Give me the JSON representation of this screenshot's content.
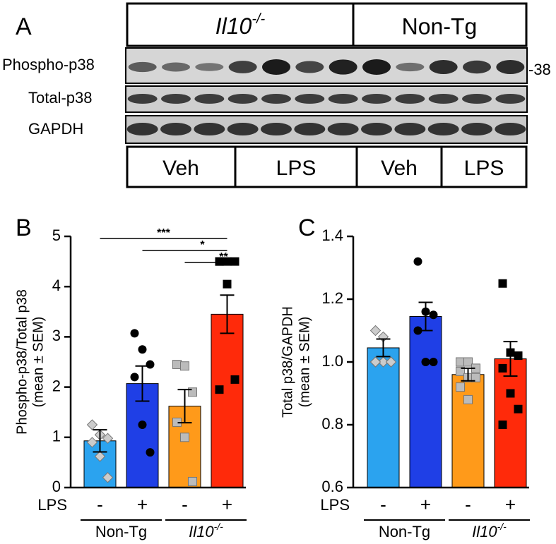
{
  "panel_a": {
    "label": "A",
    "groups": [
      {
        "text": "Il10",
        "sup": "-/-"
      },
      {
        "text": "Non-Tg"
      }
    ],
    "rows": [
      "Phospho-p38",
      "Total-p38",
      "GAPDH"
    ],
    "marker": "-38",
    "treatments": [
      "Veh",
      "LPS",
      "Veh",
      "LPS"
    ]
  },
  "chart_data": [
    {
      "type": "bar",
      "label": "B",
      "ylabel": [
        "Phospho-p38/Total p38",
        "(mean ± SEM)"
      ],
      "factor_label": "LPS",
      "categories": [
        "-",
        "+",
        "-",
        "+"
      ],
      "groups": [
        {
          "text": "Non-Tg"
        },
        {
          "text": "Il10",
          "sup": "-/-"
        }
      ],
      "values": [
        0.93,
        2.07,
        1.62,
        3.45
      ],
      "errors": [
        0.22,
        0.35,
        0.33,
        0.38
      ],
      "colors": [
        "#2ba3ef",
        "#1f3fe6",
        "#ff9a1a",
        "#ff2a0a"
      ],
      "points": [
        [
          1.25,
          1.05,
          0.98,
          0.9,
          0.62,
          0.2
        ],
        [
          3.07,
          2.75,
          2.45,
          2.2,
          1.25,
          0.7
        ],
        [
          2.45,
          2.42,
          1.9,
          1.3,
          1.0,
          0.12
        ],
        [
          4.5,
          4.5,
          4.5,
          4.5,
          4.05,
          2.15,
          1.95
        ]
      ],
      "markers": [
        "diamond",
        "circle",
        "square",
        "square"
      ],
      "marker_colors": [
        "#cccccc",
        "#000000",
        "#bbbbbb",
        "#000000"
      ],
      "ylim": [
        0,
        5
      ],
      "yticks": [
        0,
        1,
        2,
        3,
        4,
        5
      ],
      "annotations": [
        "***",
        "*",
        "**"
      ]
    },
    {
      "type": "bar",
      "label": "C",
      "ylabel": [
        "Total p38/GAPDH",
        "(mean ± SEM)"
      ],
      "factor_label": "LPS",
      "categories": [
        "-",
        "+",
        "-",
        "+"
      ],
      "groups": [
        {
          "text": "Non-Tg"
        },
        {
          "text": "Il10",
          "sup": "-/-"
        }
      ],
      "values": [
        1.045,
        1.145,
        0.96,
        1.01
      ],
      "errors": [
        0.028,
        0.045,
        0.02,
        0.055
      ],
      "colors": [
        "#2ba3ef",
        "#1f3fe6",
        "#ff9a1a",
        "#ff2a0a"
      ],
      "points": [
        [
          1.1,
          1.08,
          1.0,
          1.0,
          1.0,
          1.0,
          1.0
        ],
        [
          1.32,
          1.16,
          1.15,
          1.1,
          1.0,
          1.0
        ],
        [
          1.0,
          1.0,
          0.98,
          0.97,
          0.95,
          0.95,
          0.92,
          0.88
        ],
        [
          1.25,
          1.03,
          1.02,
          0.98,
          0.9,
          0.85,
          0.8
        ]
      ],
      "markers": [
        "diamond",
        "circle",
        "square",
        "square"
      ],
      "marker_colors": [
        "#cccccc",
        "#000000",
        "#bbbbbb",
        "#000000"
      ],
      "ylim": [
        0.6,
        1.4
      ],
      "yticks": [
        0.6,
        0.8,
        {
          "value": 1,
          "label": "1.0"
        },
        1.2,
        1.4
      ]
    }
  ]
}
